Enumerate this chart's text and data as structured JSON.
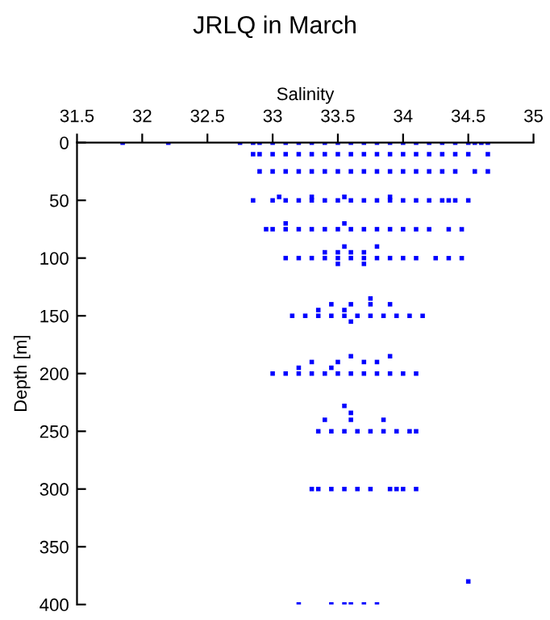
{
  "chart_data": {
    "type": "scatter",
    "title": "JRLQ in March",
    "xlabel": "Salinity",
    "ylabel": "Depth [m]",
    "xlim": [
      31.5,
      35
    ],
    "xticks": [
      31.5,
      32,
      32.5,
      33,
      33.5,
      34,
      34.5,
      35
    ],
    "ylim": [
      400,
      0
    ],
    "yticks": [
      0,
      50,
      100,
      150,
      200,
      250,
      300,
      350,
      400
    ],
    "marker": "square",
    "grid": false,
    "series": [
      {
        "color": "#0000ff",
        "x": [
          31.85,
          32.2,
          32.75,
          32.85,
          32.9,
          33.0,
          33.1,
          33.2,
          33.3,
          33.4,
          33.5,
          33.6,
          33.7,
          33.8,
          33.9,
          34.0,
          34.1,
          34.2,
          34.3,
          34.4,
          34.5,
          34.55,
          34.6,
          34.65,
          32.85,
          32.9,
          33.0,
          33.1,
          33.2,
          33.3,
          33.4,
          33.5,
          33.6,
          33.7,
          33.8,
          33.9,
          34.0,
          34.1,
          34.2,
          34.3,
          34.4,
          34.5,
          34.65,
          32.9,
          33.0,
          33.1,
          33.2,
          33.3,
          33.4,
          33.5,
          33.6,
          33.7,
          33.8,
          33.9,
          34.0,
          34.1,
          34.2,
          34.3,
          34.4,
          34.55,
          34.65,
          32.85,
          33.0,
          33.1,
          33.2,
          33.3,
          33.4,
          33.5,
          33.6,
          33.7,
          33.8,
          33.9,
          34.0,
          34.1,
          34.2,
          34.3,
          34.35,
          34.4,
          34.5,
          33.05,
          33.3,
          33.55,
          33.9,
          32.95,
          33.0,
          33.1,
          33.2,
          33.3,
          33.4,
          33.5,
          33.6,
          33.7,
          33.8,
          33.9,
          34.0,
          34.1,
          34.2,
          34.35,
          34.45,
          33.1,
          33.55,
          33.1,
          33.2,
          33.3,
          33.4,
          33.5,
          33.6,
          33.7,
          33.8,
          33.9,
          34.0,
          34.1,
          34.25,
          34.35,
          34.45,
          33.4,
          33.5,
          33.6,
          33.7,
          33.55,
          33.8,
          33.5,
          33.7,
          33.15,
          33.25,
          33.35,
          33.45,
          33.55,
          33.65,
          33.75,
          33.85,
          33.95,
          34.05,
          34.15,
          33.45,
          33.6,
          33.75,
          33.9,
          33.35,
          33.55,
          33.75,
          33.6,
          33.0,
          33.1,
          33.2,
          33.3,
          33.4,
          33.5,
          33.6,
          33.7,
          33.8,
          33.9,
          34.0,
          34.1,
          33.3,
          33.5,
          33.7,
          33.8,
          33.6,
          33.9,
          33.2,
          33.45,
          33.35,
          33.45,
          33.55,
          33.65,
          33.75,
          33.85,
          33.95,
          34.05,
          34.1,
          33.4,
          33.6,
          33.85,
          33.55,
          33.6,
          33.3,
          33.35,
          33.45,
          33.55,
          33.65,
          33.75,
          33.9,
          33.95,
          34.0,
          34.1,
          34.5,
          33.2,
          33.45,
          33.55,
          33.6,
          33.7,
          33.8
        ],
        "values": [
          0,
          0,
          0,
          0,
          0,
          0,
          0,
          0,
          0,
          0,
          0,
          0,
          0,
          0,
          0,
          0,
          0,
          0,
          0,
          0,
          0,
          0,
          0,
          0,
          10,
          10,
          10,
          10,
          10,
          10,
          10,
          10,
          10,
          10,
          10,
          10,
          10,
          10,
          10,
          10,
          10,
          10,
          10,
          25,
          25,
          25,
          25,
          25,
          25,
          25,
          25,
          25,
          25,
          25,
          25,
          25,
          25,
          25,
          25,
          25,
          25,
          50,
          50,
          50,
          50,
          50,
          50,
          50,
          50,
          50,
          50,
          50,
          50,
          50,
          50,
          50,
          50,
          50,
          50,
          47,
          47,
          47,
          47,
          75,
          75,
          75,
          75,
          75,
          75,
          75,
          75,
          75,
          75,
          75,
          75,
          75,
          75,
          75,
          75,
          70,
          70,
          100,
          100,
          100,
          100,
          100,
          100,
          100,
          100,
          100,
          100,
          100,
          100,
          100,
          100,
          95,
          95,
          95,
          95,
          90,
          90,
          105,
          105,
          150,
          150,
          150,
          150,
          150,
          150,
          150,
          150,
          150,
          150,
          150,
          140,
          140,
          140,
          140,
          145,
          145,
          135,
          155,
          200,
          200,
          200,
          200,
          200,
          200,
          200,
          200,
          200,
          200,
          200,
          200,
          190,
          190,
          190,
          190,
          185,
          185,
          195,
          195,
          250,
          250,
          250,
          250,
          250,
          250,
          250,
          250,
          250,
          240,
          240,
          240,
          228,
          234,
          300,
          300,
          300,
          300,
          300,
          300,
          300,
          300,
          300,
          300,
          380,
          400,
          400,
          400,
          400,
          400,
          400
        ]
      }
    ]
  }
}
